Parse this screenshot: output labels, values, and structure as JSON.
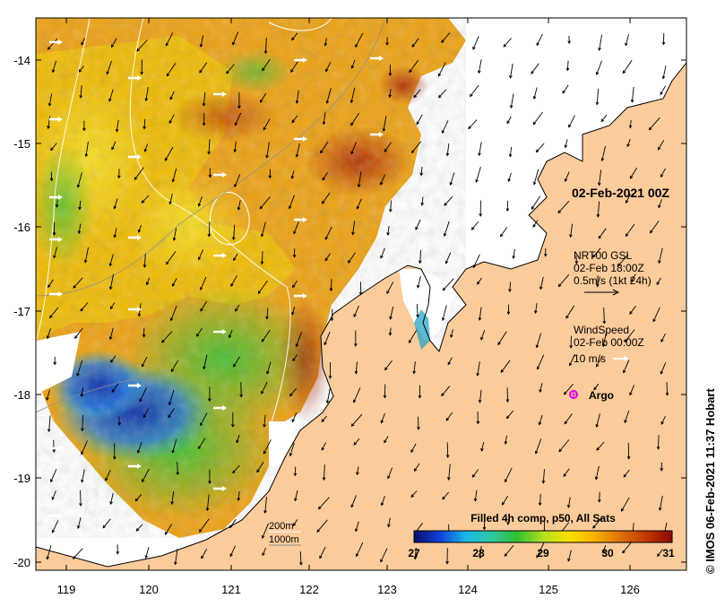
{
  "map": {
    "date_title": "02-Feb-2021 00Z",
    "credit": "© IMOS 06-Feb-2021 11:37 Hobart",
    "x_ticks": [
      "119",
      "120",
      "121",
      "122",
      "123",
      "124",
      "125",
      "126"
    ],
    "y_ticks": [
      "-14",
      "-15",
      "-16",
      "-17",
      "-18",
      "-19",
      "-20"
    ],
    "current_legend": {
      "line1": "NRT00 GSL",
      "line2": "02-Feb 18:00Z",
      "line3": "0.5m/s (1kt 24h)"
    },
    "wind_legend": {
      "line1": "WindSpeed",
      "line2": "02-Feb 00:00Z",
      "line3": "10 m/s"
    },
    "argo_label": "Argo",
    "depth_labels": [
      "200m",
      "1000m"
    ],
    "colorbar": {
      "title": "Filled 4h comp, p50, All Sats",
      "ticks": [
        "27",
        "28",
        "29",
        "30",
        "31"
      ],
      "min": 27,
      "max": 31,
      "stops": [
        "#08106b",
        "#1040d8",
        "#18b8e8",
        "#30c8a0",
        "#30c030",
        "#b0e020",
        "#f8e000",
        "#f8b000",
        "#e07008",
        "#c03800",
        "#8a0a00"
      ]
    },
    "colors": {
      "land": "#facb9b",
      "ocean_no_data": "#ffffff",
      "argo": "#e000e0"
    }
  }
}
